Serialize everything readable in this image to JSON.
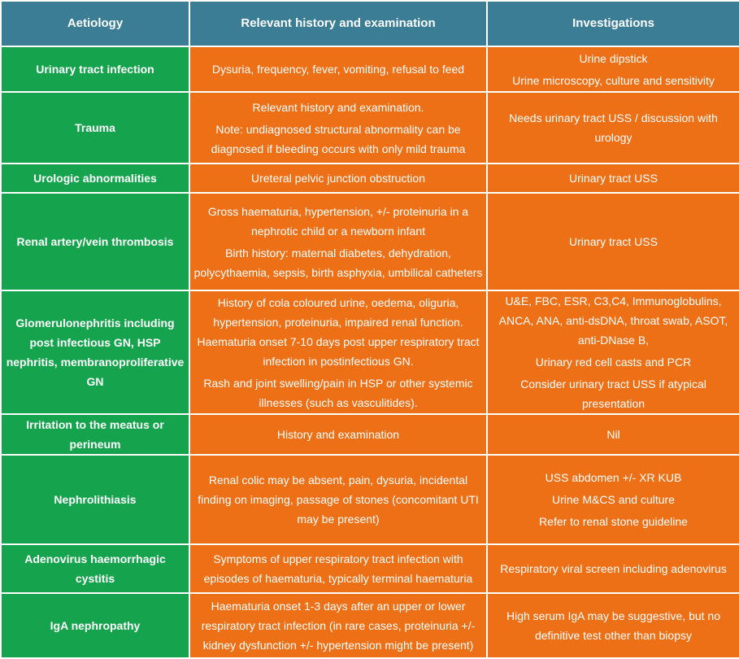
{
  "table": {
    "headers": {
      "aetiology": "Aetiology",
      "history": "Relevant history and examination",
      "investigations": "Investigations"
    },
    "rows": [
      {
        "aetiology": "Urinary tract infection",
        "history": [
          "Dysuria, frequency, fever, vomiting, refusal to feed"
        ],
        "investigations": [
          "Urine dipstick",
          "Urine microscopy, culture and sensitivity"
        ]
      },
      {
        "aetiology": "Trauma",
        "history": [
          "Relevant history and examination.",
          "Note: undiagnosed structural abnormality can be diagnosed if bleeding occurs with only mild trauma"
        ],
        "investigations": [
          "Needs urinary tract USS / discussion with urology"
        ]
      },
      {
        "aetiology": "Urologic abnormalities",
        "history": [
          "Ureteral pelvic junction obstruction"
        ],
        "investigations": [
          "Urinary tract USS"
        ]
      },
      {
        "aetiology": "Renal artery/vein thrombosis",
        "history": [
          "Gross haematuria, hypertension, +/- proteinuria in a nephrotic child or a newborn infant",
          "Birth history: maternal diabetes, dehydration, polycythaemia, sepsis, birth asphyxia, umbilical catheters"
        ],
        "investigations": [
          "Urinary tract USS"
        ]
      },
      {
        "aetiology": "Glomerulonephritis including post infectious GN, HSP nephritis, membranoproliferative GN",
        "history": [
          "History of cola coloured urine, oedema, oliguria, hypertension, proteinuria, impaired renal function.  Haematuria onset 7-10 days post upper respiratory tract infection in postinfectious GN.",
          "Rash and joint swelling/pain in HSP or other systemic illnesses (such as vasculitides)."
        ],
        "investigations": [
          "U&E, FBC, ESR, C3,C4, Immunoglobulins, ANCA, ANA, anti-dsDNA, throat swab, ASOT, anti-DNase B,",
          "Urinary red cell casts and PCR",
          "Consider urinary tract USS if atypical presentation"
        ]
      },
      {
        "aetiology": "Irritation to the meatus or perineum",
        "history": [
          "History and examination"
        ],
        "investigations": [
          "Nil"
        ]
      },
      {
        "aetiology": "Nephrolithiasis",
        "history": [
          "Renal colic may be absent, pain, dysuria, incidental finding on imaging, passage of stones (concomitant UTI may be present)"
        ],
        "investigations": [
          "USS abdomen +/- XR KUB",
          "Urine M&CS and culture",
          "Refer to renal stone guideline"
        ]
      },
      {
        "aetiology": "Adenovirus haemorrhagic cystitis",
        "history": [
          "Symptoms of upper respiratory tract infection with episodes of haematuria, typically terminal haematuria"
        ],
        "investigations": [
          "Respiratory viral screen including adenovirus"
        ]
      },
      {
        "aetiology": "IgA nephropathy",
        "history": [
          "Haematuria onset 1-3 days after an upper or lower respiratory tract infection (in rare cases, proteinuria +/- kidney dysfunction +/- hypertension might be present)"
        ],
        "investigations": [
          "High serum IgA may be suggestive, but no definitive test other than biopsy"
        ]
      }
    ]
  }
}
